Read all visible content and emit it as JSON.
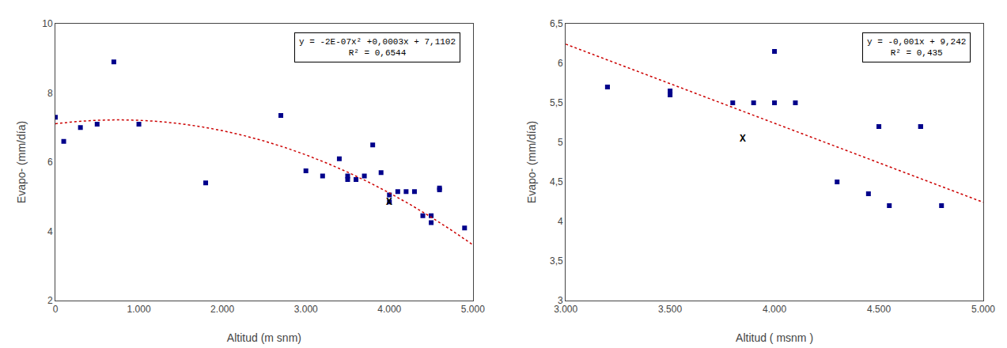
{
  "chart_data": [
    {
      "type": "scatter",
      "xlabel": "Altitud (m snm)",
      "ylabel": "Evapo- (mm/día)",
      "xlim": [
        0,
        5000
      ],
      "ylim": [
        2,
        10
      ],
      "xticks": [
        0,
        {
          "value": 1000,
          "label": "1.000"
        },
        {
          "value": 2000,
          "label": "2.000"
        },
        {
          "value": 3000,
          "label": "3.000"
        },
        {
          "value": 4000,
          "label": "4.000"
        },
        {
          "value": 5000,
          "label": "5.000"
        }
      ],
      "yticks": [
        2,
        4,
        6,
        8,
        10
      ],
      "grid": false,
      "series": [
        {
          "type": "scatter",
          "marker": "square",
          "color": "#00008B",
          "x": [
            0,
            100,
            300,
            500,
            700,
            1000,
            1800,
            2700,
            3000,
            3200,
            3400,
            3500,
            3500,
            3600,
            3700,
            3800,
            3900,
            4000,
            4000,
            4100,
            4200,
            4300,
            4400,
            4500,
            4500,
            4600,
            4600,
            4900
          ],
          "values": [
            7.3,
            6.6,
            7.0,
            7.1,
            8.9,
            7.1,
            5.4,
            7.35,
            5.75,
            5.6,
            6.1,
            5.5,
            5.6,
            5.5,
            5.6,
            6.5,
            5.7,
            4.85,
            5.05,
            5.15,
            5.15,
            5.15,
            4.45,
            4.45,
            4.25,
            5.2,
            5.25,
            4.1
          ]
        },
        {
          "type": "line",
          "line_style": "dotted",
          "color": "#CC0000",
          "x": [
            0,
            250,
            500,
            750,
            1000,
            1250,
            1500,
            1750,
            2000,
            2250,
            2500,
            2750,
            3000,
            3250,
            3500,
            3750,
            4000,
            4250,
            4500,
            4750,
            5000
          ],
          "values": [
            7.1102,
            7.1727,
            7.2102,
            7.2227,
            7.2102,
            7.1727,
            7.1102,
            7.0227,
            6.9102,
            6.7727,
            6.6102,
            6.4227,
            6.2102,
            5.9727,
            5.7102,
            5.4227,
            5.1102,
            4.7727,
            4.4102,
            4.0227,
            3.6102
          ]
        }
      ],
      "annotations": [
        {
          "text": "X",
          "x": 4000,
          "y": 4.85
        },
        {
          "text": [
            "y = -2E-07x² +0,0003x + 7,1102",
            "R² = 0,6544"
          ]
        }
      ]
    },
    {
      "type": "scatter",
      "xlabel": "Altitud ( msnm )",
      "ylabel": "Evapo- (mm/día)",
      "xlim": [
        3000,
        5000
      ],
      "ylim": [
        3,
        6.5
      ],
      "xticks": [
        {
          "value": 3000,
          "label": "3.000"
        },
        {
          "value": 3500,
          "label": "3.500"
        },
        {
          "value": 4000,
          "label": "4.000"
        },
        {
          "value": 4500,
          "label": "4.500"
        },
        {
          "value": 5000,
          "label": "5.000"
        }
      ],
      "yticks": [
        3,
        {
          "value": 3.5,
          "label": "3,5"
        },
        4,
        {
          "value": 4.5,
          "label": "4,5"
        },
        5,
        {
          "value": 5.5,
          "label": "5,5"
        },
        6,
        {
          "value": 6.5,
          "label": "6,5"
        }
      ],
      "grid": false,
      "series": [
        {
          "type": "scatter",
          "marker": "square",
          "color": "#00008B",
          "x": [
            3200,
            3200,
            3500,
            3500,
            3800,
            3900,
            4000,
            4000,
            4100,
            4300,
            4450,
            4500,
            4500,
            4550,
            4700,
            4700,
            4800
          ],
          "values": [
            5.7,
            5.7,
            5.6,
            5.65,
            5.5,
            5.5,
            6.15,
            5.5,
            5.5,
            4.5,
            4.35,
            5.2,
            5.2,
            4.2,
            5.2,
            5.2,
            4.2
          ]
        },
        {
          "type": "line",
          "line_style": "dotted",
          "color": "#CC0000",
          "x": [
            3000,
            5000
          ],
          "values": [
            6.242,
            4.242
          ]
        }
      ],
      "annotations": [
        {
          "text": "X",
          "x": 3850,
          "y": 5.05
        },
        {
          "text": [
            "y = -0,001x + 9,242",
            "R² = 0,435"
          ]
        }
      ]
    }
  ]
}
